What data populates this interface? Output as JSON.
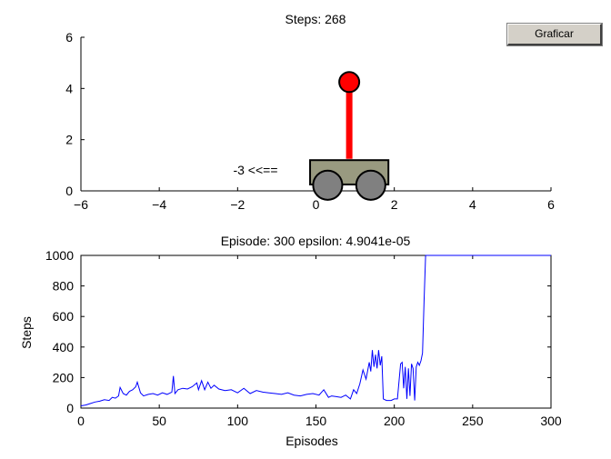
{
  "button": {
    "label": "Graficar"
  },
  "cart_plot": {
    "title": "Steps: 268",
    "action_label": "-3 <<==",
    "xlim": [
      -6,
      6
    ],
    "ylim": [
      0,
      6
    ],
    "xticks": [
      "−6",
      "−4",
      "−2",
      "0",
      "2",
      "4",
      "6"
    ],
    "yticks": [
      "0",
      "2",
      "4",
      "6"
    ],
    "cart_position": 0.85,
    "pole_angle_deg": 0,
    "colors": {
      "cart": "#999a80",
      "wheel": "#808080",
      "pole": "#ff0000",
      "bob": "#ff0000"
    }
  },
  "chart_data": {
    "type": "line",
    "title": "Episode: 300 epsilon: 4.9041e-05",
    "xlabel": "Episodes",
    "ylabel": "Steps",
    "xlim": [
      0,
      300
    ],
    "ylim": [
      0,
      1000
    ],
    "xticks": [
      "0",
      "50",
      "100",
      "150",
      "200",
      "250",
      "300"
    ],
    "yticks": [
      "0",
      "200",
      "400",
      "600",
      "800",
      "1000"
    ],
    "grid": false,
    "series": [
      {
        "color": "#0000ff",
        "x": [
          0,
          3,
          6,
          9,
          12,
          15,
          18,
          20,
          22,
          24,
          25,
          27,
          29,
          31,
          33,
          35,
          36,
          38,
          40,
          43,
          46,
          49,
          52,
          55,
          58,
          59,
          60,
          62,
          65,
          68,
          71,
          74,
          75,
          77,
          79,
          81,
          83,
          85,
          88,
          92,
          96,
          100,
          104,
          108,
          112,
          116,
          120,
          124,
          128,
          132,
          136,
          140,
          144,
          148,
          152,
          155,
          158,
          160,
          163,
          166,
          169,
          172,
          174,
          176,
          178,
          180,
          182,
          184,
          185,
          186,
          187,
          188,
          189,
          190,
          191,
          192,
          193,
          195,
          198,
          200,
          202,
          204,
          205,
          206,
          207,
          208,
          209,
          210,
          211,
          212,
          213,
          214,
          215,
          216,
          217,
          218,
          219,
          220,
          222,
          230,
          250,
          270,
          300
        ],
        "y": [
          15,
          20,
          30,
          40,
          45,
          55,
          50,
          70,
          65,
          80,
          135,
          95,
          85,
          110,
          120,
          140,
          170,
          100,
          80,
          90,
          95,
          85,
          100,
          90,
          105,
          210,
          95,
          120,
          130,
          125,
          140,
          165,
          120,
          180,
          120,
          170,
          130,
          150,
          125,
          115,
          120,
          100,
          130,
          95,
          115,
          105,
          100,
          95,
          90,
          100,
          85,
          80,
          90,
          95,
          85,
          120,
          70,
          80,
          75,
          70,
          85,
          60,
          120,
          95,
          160,
          250,
          190,
          300,
          240,
          380,
          270,
          350,
          260,
          380,
          280,
          340,
          60,
          50,
          50,
          60,
          60,
          290,
          300,
          130,
          270,
          60,
          260,
          80,
          290,
          260,
          50,
          270,
          300,
          280,
          310,
          360,
          700,
          1000,
          1000,
          1000,
          1000,
          1000,
          1000
        ]
      }
    ]
  }
}
